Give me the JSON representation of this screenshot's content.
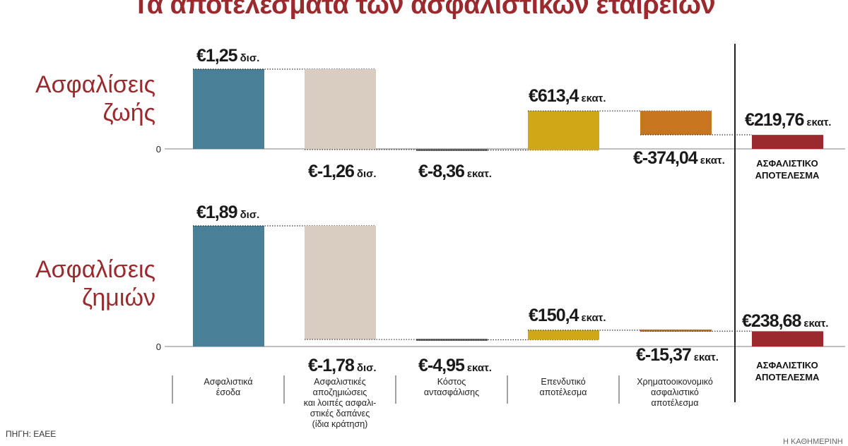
{
  "title": "Τα αποτελέσματα των ασφαλιστικών εταιρειών",
  "panels": [
    {
      "line1": "Ασφαλίσεις",
      "line2": "ζωής"
    },
    {
      "line1": "Ασφαλίσεις",
      "line2": "ζημιών"
    }
  ],
  "source": "ΠΗΓΗ: ΕΑΕΕ",
  "credit": "Η ΚΑΘΗΜΕΡΙΝΗ",
  "colors": {
    "title": "#9b2a2f",
    "income": "#4a7f98",
    "claims": "#d9cdc2",
    "reinsurance": "#6b6b6b",
    "investment": "#cfa818",
    "financial": "#c8751f",
    "result": "#9b2a2f"
  },
  "chart_data": [
    {
      "type": "waterfall",
      "title": "Ασφαλίσεις ζωής",
      "zero_label": "0",
      "categories": [
        "Ασφαλιστικά έσοδα",
        "Ασφαλιστικές αποζημιώσεις και λοιπές ασφαλιστικές δαπάνες (ίδια κράτηση)",
        "Κόστος αντασφάλισης",
        "Επενδυτικό αποτέλεσμα",
        "Χρηματοοικονομικό ασφαλιστικό αποτέλεσμα",
        "ΑΣΦΑΛΙΣΤΙΚΟ ΑΠΟΤΕΛΕΣΜΑ"
      ],
      "values_million_eur": [
        1250,
        -1260,
        -8.36,
        613.4,
        -374.04,
        219.76
      ],
      "labels": [
        {
          "num": "€1,25",
          "unit": "δισ."
        },
        {
          "num": "€-1,26",
          "unit": "δισ."
        },
        {
          "num": "€-8,36",
          "unit": "εκατ."
        },
        {
          "num": "€613,4",
          "unit": "εκατ."
        },
        {
          "num": "€-374,04",
          "unit": "εκατ."
        },
        {
          "num": "€219,76",
          "unit": "εκατ."
        }
      ]
    },
    {
      "type": "waterfall",
      "title": "Ασφαλίσεις ζημιών",
      "zero_label": "0",
      "categories": [
        "Ασφαλιστικά έσοδα",
        "Ασφαλιστικές αποζημιώσεις και λοιπές ασφαλιστικές δαπάνες (ίδια κράτηση)",
        "Κόστος αντασφάλισης",
        "Επενδυτικό αποτέλεσμα",
        "Χρηματοοικονομικό ασφαλιστικό αποτέλεσμα",
        "ΑΣΦΑΛΙΣΤΙΚΟ ΑΠΟΤΕΛΕΣΜΑ"
      ],
      "values_million_eur": [
        1890,
        -1780,
        -4.95,
        150.4,
        -15.37,
        238.68
      ],
      "labels": [
        {
          "num": "€1,89",
          "unit": "δισ."
        },
        {
          "num": "€-1,78",
          "unit": "δισ."
        },
        {
          "num": "€-4,95",
          "unit": "εκατ."
        },
        {
          "num": "€150,4",
          "unit": "εκατ."
        },
        {
          "num": "€-15,37",
          "unit": "εκατ."
        },
        {
          "num": "€238,68",
          "unit": "εκατ."
        }
      ]
    }
  ],
  "bottom_labels": [
    [
      "Ασφαλιστικά",
      "έσοδα"
    ],
    [
      "Ασφαλιστικές",
      "αποζημιώσεις",
      "και λοιπές ασφαλι-",
      "στικές δαπάνες",
      "(ίδια κράτηση)"
    ],
    [
      "Κόστος",
      "αντασφάλισης"
    ],
    [
      "Επενδυτικό",
      "αποτέλεσμα"
    ],
    [
      "Χρηματοοικονομικό",
      "ασφαλιστικό",
      "αποτέλεσμα"
    ]
  ],
  "result_labels": [
    [
      "ΑΣΦΑΛΙΣΤΙΚΟ",
      "ΑΠΟΤΕΛΕΣΜΑ"
    ],
    [
      "ΑΣΦΑΛΙΣΤΙΚΟ",
      "ΑΠΟΤΕΛΕΣΜΑ"
    ]
  ]
}
